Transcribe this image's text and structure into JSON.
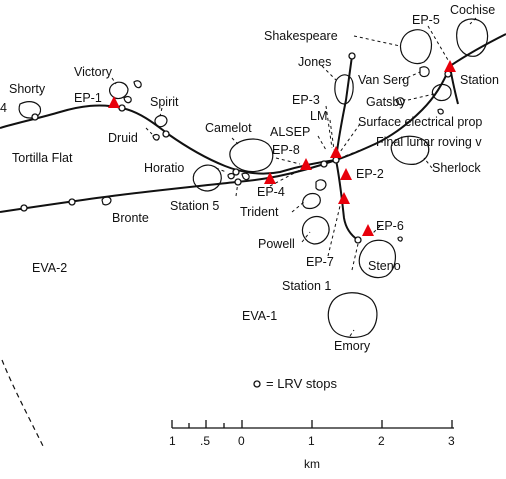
{
  "labels": {
    "shorty": "Shorty",
    "victory": "Victory",
    "ep1": "EP-1",
    "spirit": "Spirit",
    "druid": "Druid",
    "tortilla_flat": "Tortilla Flat",
    "camelot": "Camelot",
    "horatio": "Horatio",
    "station5": "Station 5",
    "bronte": "Bronte",
    "eva2": "EVA-2",
    "shakespeare": "Shakespeare",
    "jones": "Jones",
    "ep3": "EP-3",
    "lm": "LM",
    "alsep": "ALSEP",
    "ep8": "EP-8",
    "ep4": "EP-4",
    "trident": "Trident",
    "powell": "Powell",
    "ep7": "EP-7",
    "station1": "Station 1",
    "eva1": "EVA-1",
    "emory": "Emory",
    "ep5": "EP-5",
    "cochise": "Cochise",
    "van_serg": "Van Serg",
    "gatsby": "Gatsby",
    "station6": "Station",
    "surface_elec": "Surface electrical prop",
    "final_lrv": "Final lunar roving v",
    "ep2": "EP-2",
    "sherlock": "Sherlock",
    "ep6": "EP-6",
    "steno": "Steno",
    "left_edge_number": "4"
  },
  "legend": {
    "label": "= LRV stops"
  },
  "scale": {
    "ticks": [
      "1",
      ".5",
      "0",
      "1",
      "2",
      "3"
    ],
    "unit": "km"
  },
  "colors": {
    "marker": "#e8000b",
    "ink": "#111111"
  }
}
